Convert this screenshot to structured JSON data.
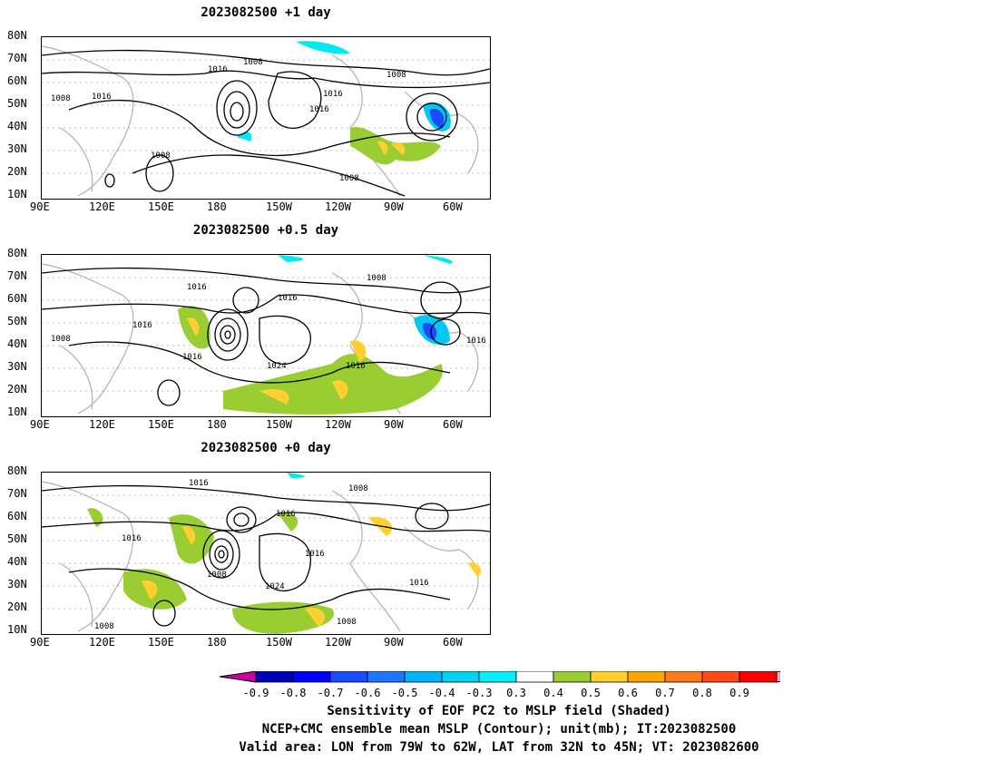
{
  "panels": [
    {
      "title": "2023082500  +1 day"
    },
    {
      "title": "2023082500  +0.5 day"
    },
    {
      "title": "2023082500  +0 day"
    }
  ],
  "lat_labels": [
    "80N",
    "70N",
    "60N",
    "50N",
    "40N",
    "30N",
    "20N",
    "10N"
  ],
  "lon_labels": [
    "90E",
    "120E",
    "150E",
    "180",
    "150W",
    "120W",
    "90W",
    "60W"
  ],
  "contour_labels": {
    "p0": [
      "1008",
      "1016",
      "1008",
      "1016",
      "1008",
      "1016",
      "1016",
      "1008",
      "1008"
    ],
    "p1": [
      "1016",
      "1008",
      "1016",
      "1008",
      "1016",
      "1016",
      "1024",
      "1016",
      "1016"
    ],
    "p2": [
      "1016",
      "1008",
      "1016",
      "1016",
      "1008",
      "1024",
      "1016",
      "1016",
      "1008",
      "1008"
    ]
  },
  "colorbar": {
    "ticks": [
      "-0.9",
      "-0.8",
      "-0.7",
      "-0.6",
      "-0.5",
      "-0.4",
      "-0.3",
      "0.3",
      "0.4",
      "0.5",
      "0.6",
      "0.7",
      "0.8",
      "0.9"
    ],
    "colors": [
      "#c8009c",
      "#0000b4",
      "#0000ff",
      "#1a4bff",
      "#1e78ff",
      "#00b4ff",
      "#00d2f0",
      "#00f0ff",
      "#ffffff",
      "#9acd32",
      "#ffd030",
      "#ffa500",
      "#ff7a1a",
      "#ff4a1a",
      "#ff0000",
      "#ffa0c8"
    ]
  },
  "caption": {
    "line1": "Sensitivity of EOF PC2 to MSLP field (Shaded)",
    "line2": "NCEP+CMC ensemble mean MSLP (Contour); unit(mb); IT:2023082500",
    "line3": "Valid area: LON from 79W to 62W, LAT from 32N to 45N; VT: 2023082600"
  }
}
